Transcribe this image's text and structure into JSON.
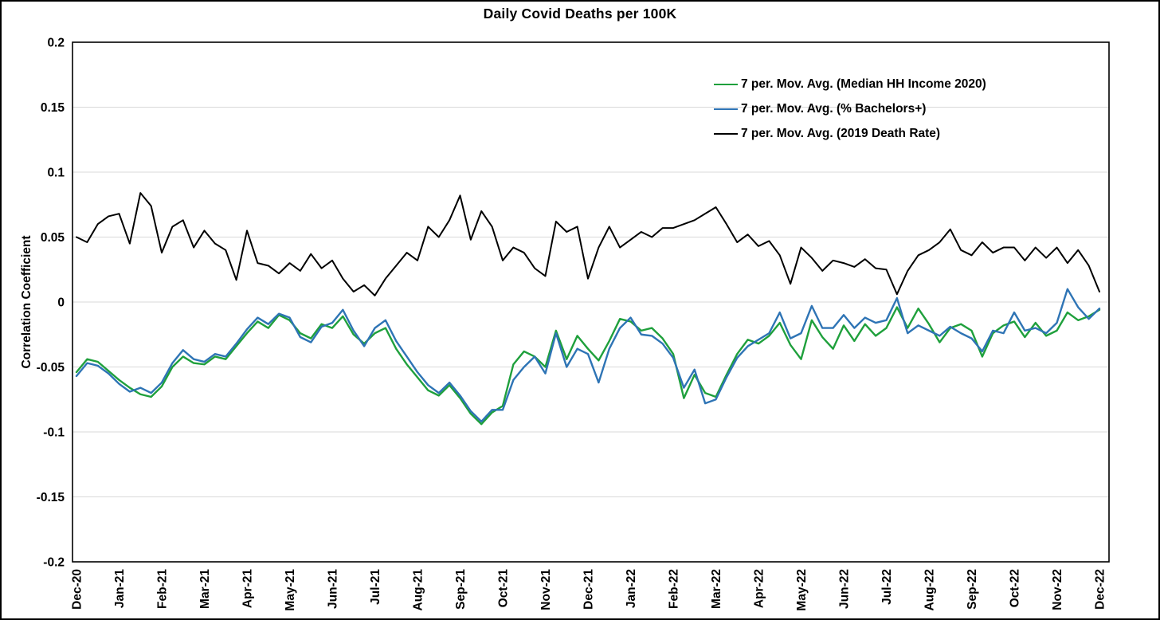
{
  "chart_data": {
    "type": "line",
    "title": "Daily Covid Deaths per 100K",
    "ylabel": "Correlation Coefficient",
    "xlabel": "",
    "ylim": [
      -0.2,
      0.2
    ],
    "y_ticks": [
      0.2,
      0.15,
      0.1,
      0.05,
      0,
      -0.05,
      -0.1,
      -0.15,
      -0.2
    ],
    "y_tick_labels": [
      "0.2",
      "0.15",
      "0.1",
      "0.05",
      "0",
      "-0.05",
      "-0.1",
      "-0.15",
      "-0.2"
    ],
    "categories": [
      "Dec-20",
      "Jan-21",
      "Feb-21",
      "Mar-21",
      "Apr-21",
      "May-21",
      "Jun-21",
      "Jul-21",
      "Aug-21",
      "Sep-21",
      "Oct-21",
      "Nov-21",
      "Dec-21",
      "Jan-22",
      "Feb-22",
      "Mar-22",
      "Apr-22",
      "May-22",
      "Jun-22",
      "Jul-22",
      "Aug-22",
      "Sep-22",
      "Oct-22",
      "Nov-22",
      "Dec-22"
    ],
    "points_per_month": 4,
    "grid": "horizontal",
    "grid_color": "#d9d9d9",
    "legend_position": "top-right-inside",
    "series": [
      {
        "name": "7 per. Mov. Avg. (Median HH Income 2020)",
        "color": "#1FA03C",
        "values": [
          -0.054,
          -0.044,
          -0.046,
          -0.053,
          -0.06,
          -0.066,
          -0.071,
          -0.073,
          -0.065,
          -0.05,
          -0.042,
          -0.047,
          -0.048,
          -0.042,
          -0.044,
          -0.034,
          -0.024,
          -0.015,
          -0.02,
          -0.01,
          -0.014,
          -0.024,
          -0.028,
          -0.017,
          -0.02,
          -0.011,
          -0.025,
          -0.032,
          -0.024,
          -0.02,
          -0.036,
          -0.048,
          -0.058,
          -0.068,
          -0.072,
          -0.064,
          -0.074,
          -0.086,
          -0.094,
          -0.085,
          -0.08,
          -0.048,
          -0.038,
          -0.042,
          -0.05,
          -0.022,
          -0.044,
          -0.026,
          -0.036,
          -0.045,
          -0.03,
          -0.013,
          -0.015,
          -0.022,
          -0.02,
          -0.028,
          -0.04,
          -0.074,
          -0.056,
          -0.07,
          -0.073,
          -0.056,
          -0.04,
          -0.029,
          -0.032,
          -0.026,
          -0.016,
          -0.033,
          -0.044,
          -0.014,
          -0.027,
          -0.036,
          -0.018,
          -0.03,
          -0.017,
          -0.026,
          -0.02,
          -0.004,
          -0.02,
          -0.005,
          -0.017,
          -0.031,
          -0.02,
          -0.017,
          -0.022,
          -0.042,
          -0.024,
          -0.018,
          -0.015,
          -0.027,
          -0.016,
          -0.026,
          -0.022,
          -0.008,
          -0.014,
          -0.011,
          -0.006
        ]
      },
      {
        "name": "7 per. Mov. Avg. (% Bachelors+)",
        "color": "#2E74B5",
        "values": [
          -0.057,
          -0.047,
          -0.049,
          -0.055,
          -0.063,
          -0.069,
          -0.066,
          -0.07,
          -0.062,
          -0.047,
          -0.037,
          -0.044,
          -0.046,
          -0.04,
          -0.042,
          -0.032,
          -0.021,
          -0.012,
          -0.017,
          -0.009,
          -0.012,
          -0.027,
          -0.031,
          -0.019,
          -0.016,
          -0.006,
          -0.022,
          -0.034,
          -0.02,
          -0.014,
          -0.03,
          -0.042,
          -0.054,
          -0.064,
          -0.07,
          -0.062,
          -0.072,
          -0.084,
          -0.092,
          -0.083,
          -0.083,
          -0.06,
          -0.05,
          -0.042,
          -0.055,
          -0.024,
          -0.05,
          -0.036,
          -0.04,
          -0.062,
          -0.036,
          -0.02,
          -0.012,
          -0.025,
          -0.026,
          -0.032,
          -0.043,
          -0.066,
          -0.052,
          -0.078,
          -0.075,
          -0.058,
          -0.043,
          -0.034,
          -0.029,
          -0.024,
          -0.008,
          -0.028,
          -0.024,
          -0.003,
          -0.02,
          -0.02,
          -0.01,
          -0.02,
          -0.012,
          -0.016,
          -0.014,
          0.003,
          -0.024,
          -0.018,
          -0.022,
          -0.026,
          -0.019,
          -0.024,
          -0.028,
          -0.038,
          -0.022,
          -0.024,
          -0.008,
          -0.022,
          -0.02,
          -0.024,
          -0.016,
          0.01,
          -0.004,
          -0.013,
          -0.005
        ]
      },
      {
        "name": "7 per. Mov. Avg. (2019 Death Rate)",
        "color": "#000000",
        "values": [
          0.05,
          0.046,
          0.06,
          0.066,
          0.068,
          0.045,
          0.084,
          0.074,
          0.038,
          0.058,
          0.063,
          0.042,
          0.055,
          0.045,
          0.04,
          0.017,
          0.055,
          0.03,
          0.028,
          0.022,
          0.03,
          0.024,
          0.037,
          0.026,
          0.032,
          0.018,
          0.008,
          0.013,
          0.005,
          0.018,
          0.028,
          0.038,
          0.032,
          0.058,
          0.05,
          0.063,
          0.082,
          0.048,
          0.07,
          0.058,
          0.032,
          0.042,
          0.038,
          0.026,
          0.02,
          0.062,
          0.054,
          0.058,
          0.018,
          0.042,
          0.058,
          0.042,
          0.048,
          0.054,
          0.05,
          0.057,
          0.057,
          0.06,
          0.063,
          0.068,
          0.073,
          0.06,
          0.046,
          0.052,
          0.043,
          0.047,
          0.036,
          0.014,
          0.042,
          0.034,
          0.024,
          0.032,
          0.03,
          0.027,
          0.033,
          0.026,
          0.025,
          0.006,
          0.024,
          0.036,
          0.04,
          0.046,
          0.056,
          0.04,
          0.036,
          0.046,
          0.038,
          0.042,
          0.042,
          0.032,
          0.042,
          0.034,
          0.042,
          0.03,
          0.04,
          0.028,
          0.008
        ]
      }
    ]
  }
}
